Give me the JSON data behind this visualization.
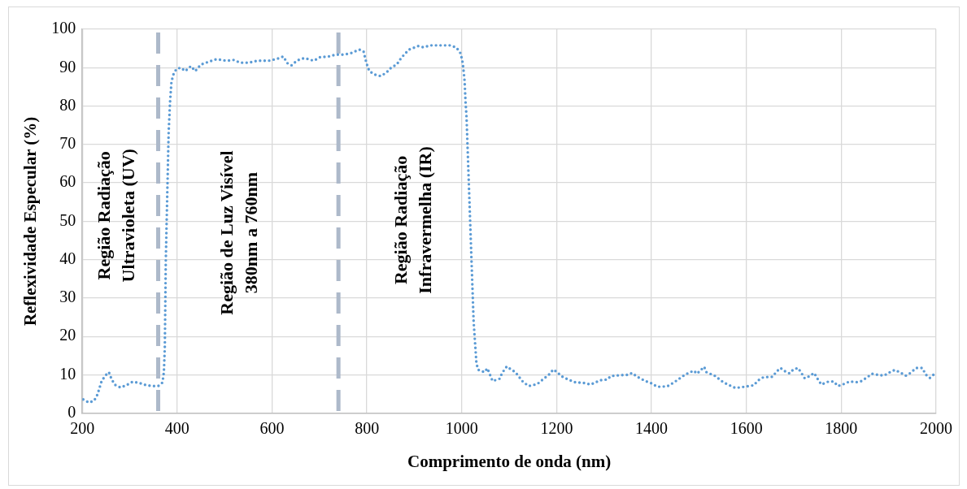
{
  "chart_data": {
    "type": "line",
    "xlabel": "Comprimento de onda (nm)",
    "ylabel": "Reflexividade Especular (%)",
    "xlim": [
      200,
      2000
    ],
    "xticks": [
      200,
      400,
      600,
      800,
      1000,
      1200,
      1400,
      1600,
      1800,
      2000
    ],
    "ylim": [
      0,
      100
    ],
    "yticks": [
      0,
      10,
      20,
      30,
      40,
      50,
      60,
      70,
      80,
      90,
      100
    ],
    "grid": true,
    "legend": false,
    "marker": "none",
    "line_style": "dotted",
    "series": [
      {
        "color": "#5b9bd5",
        "x": [
          202,
          214,
          225,
          232,
          241,
          250,
          256,
          262,
          269,
          281,
          294,
          306,
          320,
          333,
          347,
          360,
          369,
          372,
          374,
          375,
          376,
          378,
          380,
          382,
          385,
          388,
          393,
          399,
          408,
          417,
          429,
          438,
          450,
          468,
          483,
          504,
          519,
          533,
          551,
          569,
          593,
          611,
          624,
          632,
          641,
          653,
          668,
          688,
          701,
          719,
          734,
          752,
          767,
          784,
          793,
          799,
          805,
          816,
          829,
          841,
          851,
          863,
          871,
          880,
          889,
          908,
          920,
          933,
          947,
          961,
          976,
          989,
          997,
          1001,
          1003,
          1006,
          1008,
          1010,
          1025,
          1027,
          1029,
          1031,
          1035,
          1048,
          1054,
          1065,
          1080,
          1085,
          1095,
          1103,
          1113,
          1129,
          1141,
          1159,
          1173,
          1184,
          1193,
          1201,
          1211,
          1224,
          1241,
          1254,
          1272,
          1292,
          1307,
          1314,
          1332,
          1350,
          1359,
          1370,
          1387,
          1400,
          1412,
          1433,
          1444,
          1454,
          1471,
          1489,
          1496,
          1511,
          1516,
          1533,
          1548,
          1559,
          1577,
          1590,
          1616,
          1624,
          1636,
          1655,
          1664,
          1672,
          1682,
          1691,
          1699,
          1709,
          1715,
          1723,
          1732,
          1743,
          1750,
          1758,
          1772,
          1784,
          1793,
          1805,
          1818,
          1832,
          1843,
          1855,
          1865,
          1878,
          1890,
          1901,
          1913,
          1925,
          1936,
          1946,
          1958,
          1971,
          1978,
          1987,
          1997
        ],
        "values": [
          3.6,
          2.8,
          3.3,
          4.9,
          8.5,
          10,
          10.7,
          8.8,
          7.4,
          6.7,
          7.4,
          8.2,
          7.9,
          7.4,
          7.1,
          7.1,
          8,
          10.7,
          17.4,
          28.5,
          39.6,
          50.8,
          61.9,
          73,
          81.1,
          86.4,
          88.6,
          89.7,
          90,
          89.1,
          90.4,
          89.1,
          90.8,
          91.6,
          92.2,
          91.8,
          92,
          91.3,
          91.3,
          91.8,
          91.8,
          92.3,
          92.9,
          91.2,
          90.6,
          91.9,
          92.5,
          91.8,
          92.7,
          92.9,
          93.4,
          93.4,
          93.8,
          94.7,
          94.2,
          91.2,
          89.1,
          88.2,
          87.8,
          88.7,
          90,
          90.8,
          92.3,
          93.6,
          94.7,
          95.6,
          95.3,
          95.8,
          95.8,
          95.8,
          95.8,
          95.2,
          93.8,
          92,
          90.2,
          86.5,
          81,
          77.3,
          23.9,
          20.2,
          16.6,
          12.9,
          11.3,
          10.7,
          11.7,
          8.4,
          9,
          10.5,
          12.2,
          11.5,
          10.7,
          8.2,
          7.1,
          7.6,
          9,
          10.1,
          11.4,
          10.7,
          9.6,
          8.8,
          8,
          8,
          7.5,
          8.6,
          8.8,
          9.7,
          9.9,
          10,
          10.5,
          9.5,
          8.4,
          7.8,
          6.9,
          7,
          7.8,
          8.6,
          10.1,
          11.1,
          10.3,
          12.1,
          10.7,
          9.8,
          8.4,
          7.6,
          6.6,
          6.8,
          7.3,
          8.5,
          9.4,
          9.5,
          10.9,
          11.8,
          10.9,
          10.4,
          11.4,
          11.8,
          10.7,
          9.1,
          9.6,
          10.5,
          9,
          7.5,
          8.2,
          8.3,
          7.1,
          7.6,
          8.3,
          8.1,
          8.4,
          9.4,
          10.3,
          10,
          9.8,
          10.6,
          11.3,
          10.6,
          9.8,
          10.5,
          11.8,
          11.8,
          10.1,
          9.2,
          10.3
        ]
      }
    ],
    "ref_lines": [
      {
        "axis": "x",
        "value": 360,
        "color": "#adb9ca",
        "line_style": "dashed"
      },
      {
        "axis": "x",
        "value": 740,
        "color": "#adb9ca",
        "line_style": "dashed"
      }
    ],
    "annotations": [
      "Região Radiação\nUltravioleta (UV)",
      "Região de Luz Visível\n380nm a 760nm",
      "Região Radiação\nInfravermelha (IR)"
    ]
  }
}
